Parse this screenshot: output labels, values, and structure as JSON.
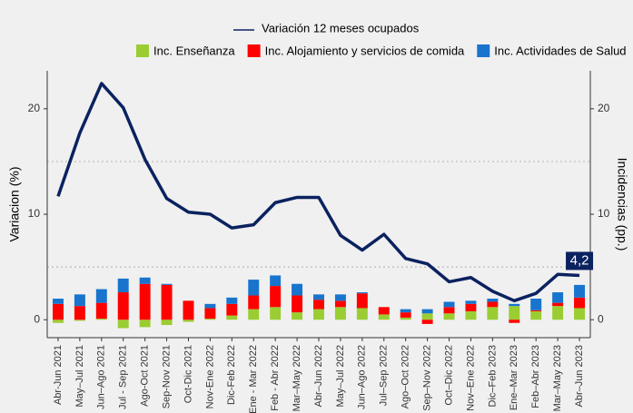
{
  "chart_data": {
    "type": "combo",
    "y_label": "Variacion (%)",
    "y2_label": "Incidencias (pp.)",
    "categories": [
      "Abr-Jun 2021",
      "May–Jul 2021",
      "Jun–Ago 2021",
      "Jul - Sep 2021",
      "Ago-Oct 2021",
      "Sep-Nov 2021",
      "Oct-Dic 2021",
      "Nov-Ene 2022",
      "Dic-Feb 2022",
      "Ene - Mar 2022",
      "Feb - Abr 2022",
      "Mar–May 2022",
      "Abr–Jun 2022",
      "May–Jul 2022",
      "Jun–Ago 2022",
      "Jul–Sep 2022",
      "Ago–Oct 2022",
      "Sep–Nov 2022",
      "Oct–Dic 2022",
      "Nov–Ene 2022",
      "Dic–Feb 2023",
      "Ene–Mar 2023",
      "Feb–Abr 2023",
      "Mar–May 2023",
      "Abr–Jun 2023"
    ],
    "series": [
      {
        "name": "Variación 12 meses ocupados",
        "type": "line",
        "color": "#0b2260",
        "values": [
          11.7,
          17.7,
          22.4,
          20.1,
          15.2,
          11.5,
          10.2,
          10.0,
          8.7,
          9.0,
          11.1,
          11.6,
          11.6,
          8.0,
          6.6,
          8.1,
          5.8,
          5.3,
          3.6,
          4.0,
          2.7,
          1.8,
          2.5,
          4.3,
          4.2
        ],
        "value_labels": [
          null,
          null,
          null,
          null,
          null,
          null,
          null,
          null,
          null,
          null,
          null,
          null,
          null,
          null,
          null,
          null,
          null,
          null,
          null,
          null,
          null,
          null,
          null,
          null,
          "4,2"
        ]
      },
      {
        "name": "Inc. Enseñanza",
        "type": "bar",
        "axis": "y2",
        "color": "#9acd32",
        "values": [
          -0.3,
          -0.1,
          0.1,
          -0.8,
          -0.7,
          -0.5,
          -0.2,
          0.1,
          0.4,
          1.0,
          1.2,
          0.7,
          1.0,
          1.2,
          1.1,
          0.5,
          0.2,
          0.6,
          0.6,
          0.8,
          1.2,
          1.3,
          0.8,
          1.3,
          1.1
        ]
      },
      {
        "name": "Inc. Alojamiento y servicios de comida",
        "type": "bar",
        "axis": "y2",
        "color": "#ff0000",
        "values": [
          1.5,
          1.3,
          1.5,
          2.6,
          3.4,
          3.3,
          1.8,
          1.0,
          1.1,
          1.3,
          2.0,
          1.6,
          0.9,
          0.6,
          1.4,
          0.7,
          0.5,
          -0.4,
          0.6,
          0.7,
          0.5,
          -0.3,
          0.1,
          0.3,
          1.0
        ]
      },
      {
        "name": "Inc. Actividades de Salud",
        "type": "bar",
        "axis": "y2",
        "color": "#1874cd",
        "values": [
          0.5,
          1.1,
          1.3,
          1.3,
          0.6,
          0.1,
          0,
          0.4,
          0.6,
          1.5,
          1.0,
          1.1,
          0.5,
          0.6,
          0.1,
          0,
          0.3,
          0.4,
          0.5,
          0.3,
          0.3,
          0.2,
          1.1,
          1.0,
          1.2
        ]
      }
    ],
    "ylim": [
      -1.7,
      23.6
    ],
    "yticks": [
      0,
      10,
      20
    ],
    "y2lim": [
      -1.7,
      23.6
    ],
    "y2ticks": [
      0,
      10,
      20
    ],
    "grid_lines": [
      5,
      15
    ],
    "legend": "top"
  }
}
